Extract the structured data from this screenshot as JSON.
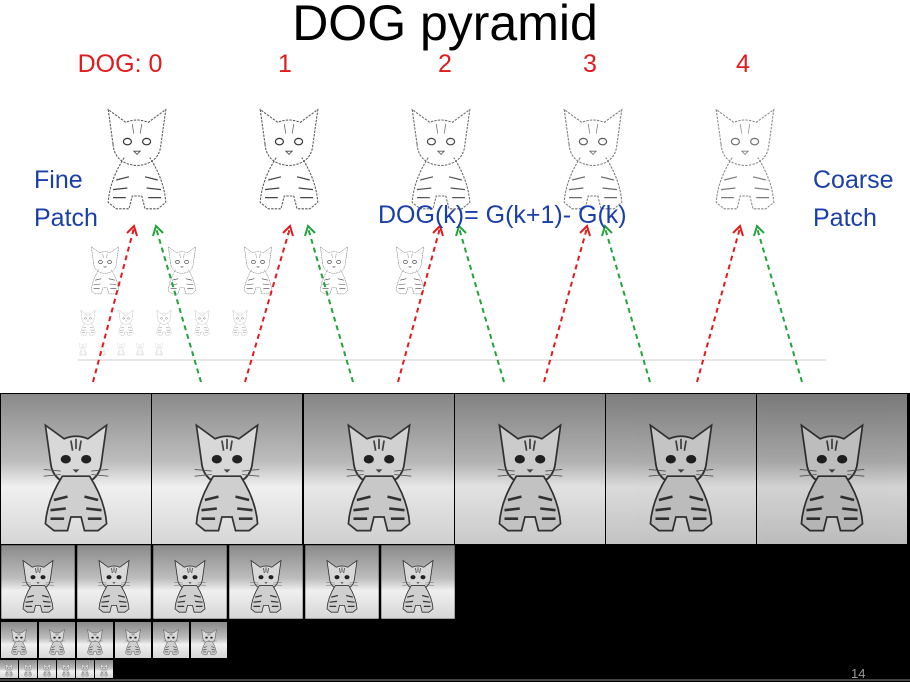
{
  "title": "DOG pyramid",
  "dog_labels": [
    "DOG: 0",
    "1",
    "2",
    "3",
    "4"
  ],
  "fine_patch": [
    "Fine",
    "Patch"
  ],
  "coarse_patch": [
    "Coarse",
    "Patch"
  ],
  "formula": "DOG(k)= G(k+1)- G(k)",
  "page_number": "14",
  "colors": {
    "label_red": "#e31a1c",
    "label_blue": "#1a3fa8",
    "arrow_red": "#e31a1c",
    "arrow_green": "#22a33a"
  }
}
